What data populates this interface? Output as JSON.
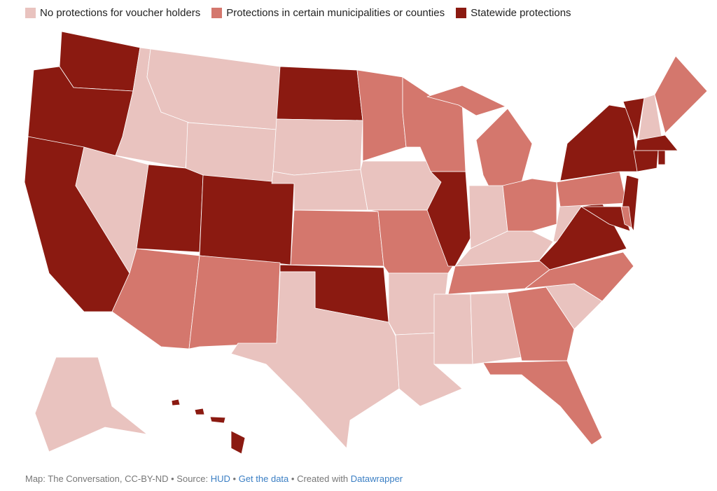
{
  "legend": {
    "items": [
      {
        "label": "No protections for voucher holders",
        "color": "#e9c3bf"
      },
      {
        "label": "Protections in certain municipalities or counties",
        "color": "#d4776d"
      },
      {
        "label": "Statewide protections",
        "color": "#8b1a11"
      }
    ]
  },
  "footer": {
    "credit": "Map: The Conversation, CC-BY-ND",
    "separator": "•",
    "source_label": "Source:",
    "source": "HUD",
    "get_data": "Get the data",
    "created_with": "Created with",
    "tool": "Datawrapper"
  }
}
